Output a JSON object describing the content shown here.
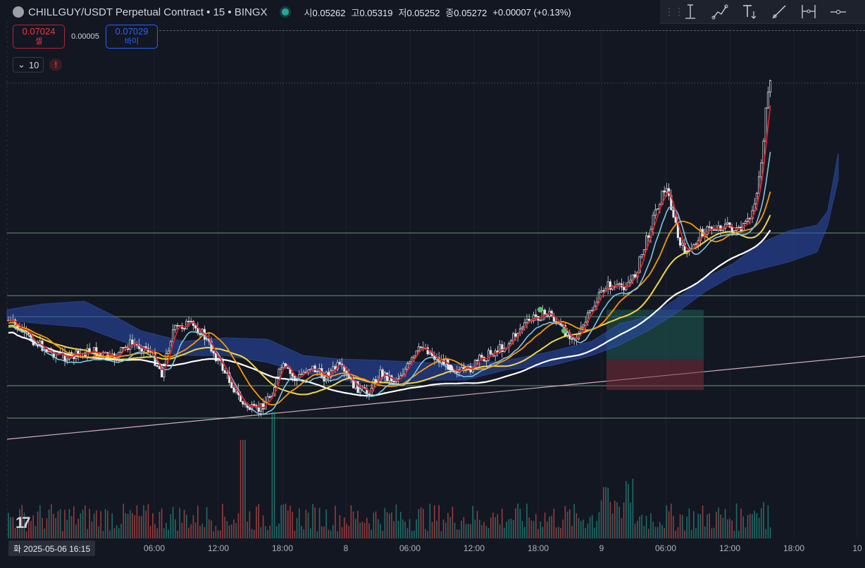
{
  "header": {
    "symbol_title": "CHILLGUY/USDT Perpetual Contract • 15 • BINGX",
    "ohlc": [
      {
        "key": "시",
        "value": "0.05262"
      },
      {
        "key": "고",
        "value": "0.05319"
      },
      {
        "key": "저",
        "value": "0.05252"
      },
      {
        "key": "종",
        "value": "0.05272"
      }
    ],
    "change": "+0.00007 (+0.13%)",
    "status_color": "#26a69a"
  },
  "trade": {
    "sell_price": "0.07024",
    "sell_label": "셀",
    "spread": "0.00005",
    "buy_price": "0.07029",
    "buy_label": "바이"
  },
  "indicators": {
    "count": "10",
    "warning": "!"
  },
  "toolbar": {
    "icons": [
      "vertical-line-icon",
      "trend-line-icon",
      "text-icon",
      "ray-icon",
      "price-range-icon",
      "horizontal-ray-icon"
    ]
  },
  "time_axis": {
    "cursor_label": "화 2025-05-06   16:15",
    "labels": [
      "06:00",
      "12:00",
      "18:00",
      "8",
      "06:00",
      "12:00",
      "18:00",
      "9",
      "06:00",
      "12:00",
      "18:00",
      "10"
    ]
  },
  "colors": {
    "background": "#131722",
    "up": "#26a69a",
    "down": "#ef5350",
    "sell": "#f23645",
    "buy": "#2962ff",
    "ma_fast": "#e0202a",
    "ma_mid": "#ff9800",
    "ma_slow": "#f5d742",
    "ma_long": "#ffffff",
    "cyan_line": "#7ec8e3",
    "cloud": "#2a4cb0",
    "hline": "#81c784"
  },
  "chart_data": {
    "type": "candlestick",
    "note_rows": [],
    "horizontal_levels": [
      0.0621,
      0.0594,
      0.0585,
      0.0555,
      0.0541
    ],
    "key_points": {
      "last_close": 0.05272,
      "high": 0.05319,
      "low": 0.05252,
      "open": 0.05262
    }
  }
}
